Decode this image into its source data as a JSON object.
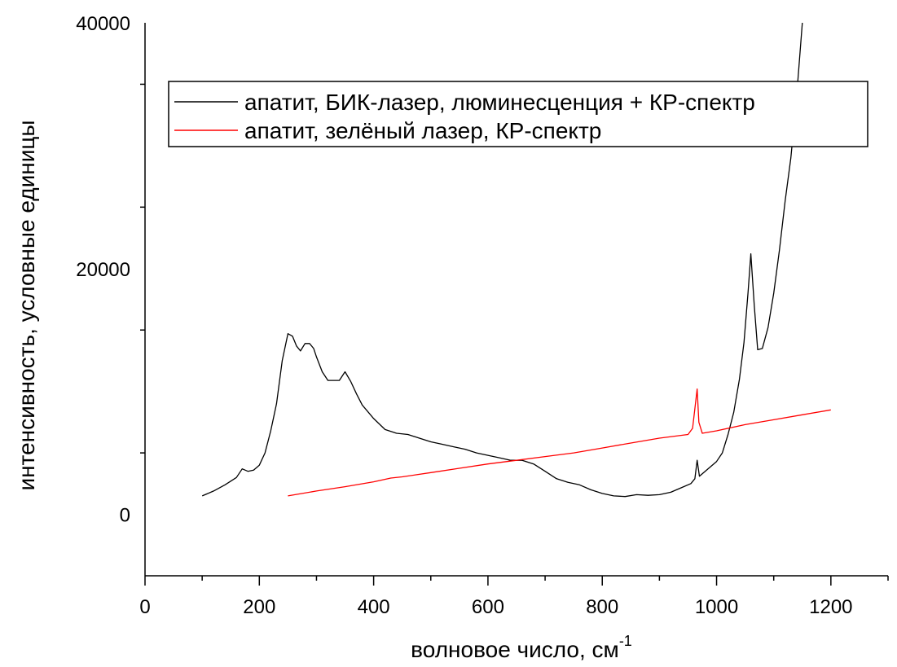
{
  "chart_data": {
    "type": "line",
    "title": "",
    "xlabel": "волновое число, см",
    "xlabel_superscript": "-1",
    "ylabel": "интенсивность, условные единицы",
    "xlim": [
      0,
      1300
    ],
    "ylim": [
      -5000,
      40000
    ],
    "x_ticks": [
      0,
      200,
      400,
      600,
      800,
      1000,
      1200
    ],
    "x_tick_labels": [
      "0",
      "200",
      "400",
      "600",
      "800",
      "1000",
      "1200"
    ],
    "y_ticks": [
      0,
      20000,
      40000
    ],
    "y_tick_labels": [
      "0",
      "20000",
      "40000"
    ],
    "grid": false,
    "legend": "top-right",
    "series": [
      {
        "name": "апатит, БИК-лазер, люминесценция + КР-спектр",
        "color": "#000000",
        "points": [
          [
            100,
            1500
          ],
          [
            120,
            1900
          ],
          [
            140,
            2400
          ],
          [
            160,
            3000
          ],
          [
            170,
            3700
          ],
          [
            180,
            3500
          ],
          [
            190,
            3600
          ],
          [
            200,
            4000
          ],
          [
            210,
            5000
          ],
          [
            220,
            6800
          ],
          [
            230,
            9000
          ],
          [
            240,
            12500
          ],
          [
            250,
            14700
          ],
          [
            258,
            14500
          ],
          [
            265,
            13700
          ],
          [
            272,
            13300
          ],
          [
            280,
            13900
          ],
          [
            288,
            13900
          ],
          [
            295,
            13500
          ],
          [
            300,
            12800
          ],
          [
            310,
            11600
          ],
          [
            320,
            10900
          ],
          [
            330,
            10900
          ],
          [
            340,
            10900
          ],
          [
            350,
            11600
          ],
          [
            360,
            10800
          ],
          [
            370,
            9800
          ],
          [
            380,
            8900
          ],
          [
            400,
            7800
          ],
          [
            420,
            6900
          ],
          [
            440,
            6600
          ],
          [
            460,
            6500
          ],
          [
            480,
            6200
          ],
          [
            500,
            5900
          ],
          [
            520,
            5700
          ],
          [
            540,
            5500
          ],
          [
            560,
            5300
          ],
          [
            580,
            5000
          ],
          [
            600,
            4800
          ],
          [
            620,
            4600
          ],
          [
            640,
            4400
          ],
          [
            660,
            4400
          ],
          [
            680,
            4100
          ],
          [
            700,
            3500
          ],
          [
            720,
            2900
          ],
          [
            740,
            2600
          ],
          [
            760,
            2400
          ],
          [
            780,
            2000
          ],
          [
            800,
            1700
          ],
          [
            820,
            1500
          ],
          [
            840,
            1450
          ],
          [
            860,
            1600
          ],
          [
            880,
            1550
          ],
          [
            900,
            1600
          ],
          [
            920,
            1800
          ],
          [
            940,
            2200
          ],
          [
            955,
            2500
          ],
          [
            962,
            2900
          ],
          [
            966,
            4400
          ],
          [
            970,
            3100
          ],
          [
            985,
            3700
          ],
          [
            1000,
            4300
          ],
          [
            1010,
            5000
          ],
          [
            1020,
            6500
          ],
          [
            1030,
            8300
          ],
          [
            1040,
            11000
          ],
          [
            1048,
            14000
          ],
          [
            1055,
            18000
          ],
          [
            1060,
            21200
          ],
          [
            1066,
            17000
          ],
          [
            1072,
            13400
          ],
          [
            1080,
            13500
          ],
          [
            1090,
            15200
          ],
          [
            1100,
            18000
          ],
          [
            1110,
            21500
          ],
          [
            1120,
            25500
          ],
          [
            1130,
            29000
          ],
          [
            1140,
            34000
          ],
          [
            1150,
            40000
          ]
        ]
      },
      {
        "name": "апатит, зелёный лазер, КР-спектр",
        "color": "#ff0000",
        "points": [
          [
            250,
            1500
          ],
          [
            300,
            1900
          ],
          [
            350,
            2250
          ],
          [
            400,
            2650
          ],
          [
            430,
            2950
          ],
          [
            450,
            3050
          ],
          [
            500,
            3400
          ],
          [
            550,
            3750
          ],
          [
            600,
            4100
          ],
          [
            650,
            4400
          ],
          [
            700,
            4700
          ],
          [
            750,
            5000
          ],
          [
            800,
            5400
          ],
          [
            850,
            5800
          ],
          [
            900,
            6200
          ],
          [
            950,
            6500
          ],
          [
            958,
            7000
          ],
          [
            963,
            9000
          ],
          [
            966,
            10200
          ],
          [
            969,
            7500
          ],
          [
            975,
            6600
          ],
          [
            1000,
            6800
          ],
          [
            1050,
            7300
          ],
          [
            1100,
            7700
          ],
          [
            1150,
            8100
          ],
          [
            1200,
            8500
          ]
        ]
      }
    ]
  }
}
